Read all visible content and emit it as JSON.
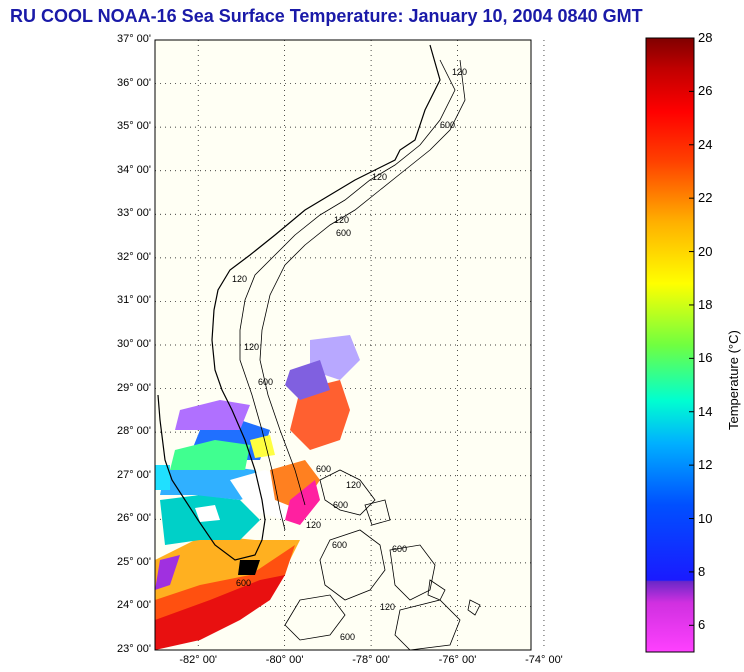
{
  "title": "RU COOL  NOAA-16  Sea Surface Temperature:  January 10, 2004 0840 GMT",
  "map": {
    "lat_ticks": [
      "37° 00'",
      "36° 00'",
      "35° 00'",
      "34° 00'",
      "33° 00'",
      "32° 00'",
      "31° 00'",
      "30° 00'",
      "29° 00'",
      "28° 00'",
      "27° 00'",
      "26° 00'",
      "25° 00'",
      "24° 00'",
      "23° 00'"
    ],
    "lon_ticks": [
      "-82° 00'",
      "-80° 00'",
      "-78° 00'",
      "-76° 00'",
      "-74° 00'"
    ],
    "lat_range": [
      23,
      37
    ],
    "lon_range": [
      -83,
      -74.3
    ],
    "contour_labels": [
      "120",
      "600"
    ]
  },
  "colorbar": {
    "axis_label": "Temperature (°C)",
    "ticks": [
      "28",
      "26",
      "24",
      "22",
      "20",
      "18",
      "16",
      "14",
      "12",
      "10",
      "8",
      "6"
    ],
    "range": [
      5,
      28
    ]
  },
  "colors": {
    "title": "#1a1aa8",
    "land": "#fffff4"
  }
}
